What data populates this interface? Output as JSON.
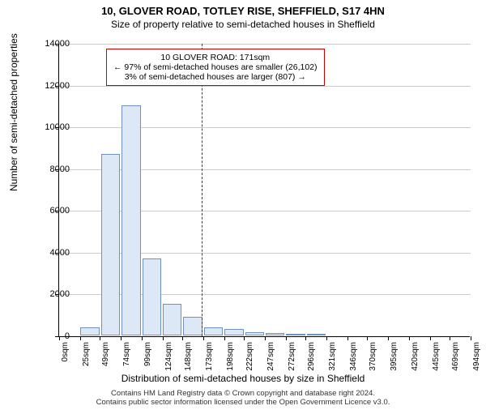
{
  "title": "10, GLOVER ROAD, TOTLEY RISE, SHEFFIELD, S17 4HN",
  "subtitle": "Size of property relative to semi-detached houses in Sheffield",
  "ylabel": "Number of semi-detached properties",
  "xlabel": "Distribution of semi-detached houses by size in Sheffield",
  "footer_line1": "Contains HM Land Registry data © Crown copyright and database right 2024.",
  "footer_line2": "Contains public sector information licensed under the Open Government Licence v3.0.",
  "chart": {
    "type": "histogram",
    "ylim": [
      0,
      14000
    ],
    "yticks": [
      0,
      2000,
      4000,
      6000,
      8000,
      10000,
      12000,
      14000
    ],
    "ytick_labels": [
      "0",
      "2000",
      "4000",
      "6000",
      "8000",
      "10000",
      "12000",
      "14000"
    ],
    "xticks": [
      0,
      25,
      49,
      74,
      99,
      124,
      148,
      173,
      198,
      222,
      247,
      272,
      296,
      321,
      346,
      370,
      395,
      420,
      445,
      469,
      494
    ],
    "xtick_labels": [
      "0sqm",
      "25sqm",
      "49sqm",
      "74sqm",
      "99sqm",
      "124sqm",
      "148sqm",
      "173sqm",
      "198sqm",
      "222sqm",
      "247sqm",
      "272sqm",
      "296sqm",
      "321sqm",
      "346sqm",
      "370sqm",
      "395sqm",
      "420sqm",
      "445sqm",
      "469sqm",
      "494sqm"
    ],
    "xmax": 494,
    "bar_values": [
      0,
      400,
      8700,
      11000,
      3700,
      1500,
      900,
      400,
      300,
      150,
      100,
      80,
      50,
      0,
      0,
      0,
      0,
      0,
      0,
      0
    ],
    "bar_fill": "#dce8f6",
    "bar_stroke": "#6f93c0",
    "grid_color": "#cccccc",
    "background": "#ffffff"
  },
  "annotation": {
    "line1": "10 GLOVER ROAD: 171sqm",
    "line2": "← 97% of semi-detached houses are smaller (26,102)",
    "line3": "3% of semi-detached houses are larger (807) →",
    "border_color": "#cc0000",
    "ref_x": 171,
    "ref_color": "#cc0000"
  }
}
